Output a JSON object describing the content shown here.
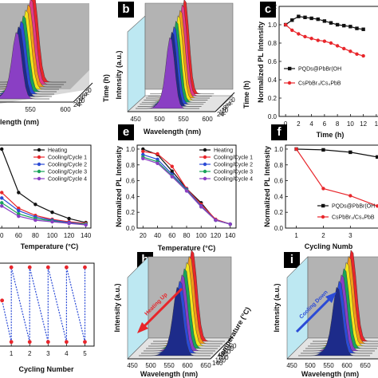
{
  "panels": {
    "a": {
      "letter": "",
      "xlabel": "length (nm)",
      "zlabel": "Time (h)",
      "xticks": [
        "550",
        "600"
      ],
      "zticks": [
        "0",
        "2",
        "4",
        "6",
        "8",
        "10",
        "12",
        "24"
      ]
    },
    "b": {
      "letter": "b",
      "xlabel": "Wavelength (nm)",
      "ylabel": "Intensity (a.u.)",
      "zlabel": "Time (h)",
      "xticks": [
        "450",
        "500",
        "550",
        "600"
      ],
      "zticks": [
        "0",
        "2",
        "4",
        "6",
        "8",
        "10",
        "12",
        "24"
      ]
    },
    "c": {
      "letter": "c",
      "xlabel": "Time (h)",
      "ylabel": "Normalized PL Intensity",
      "xticks": [
        "0",
        "2",
        "4",
        "6",
        "8",
        "10",
        "12",
        "1"
      ],
      "yticks": [
        "0.0",
        "0.2",
        "0.4",
        "0.6",
        "0.8",
        "1.0",
        "1.2"
      ],
      "legend": [
        "PQDs@PbBr(OH",
        "CsPbBr₃/Cs₄PbB"
      ]
    },
    "d": {
      "letter": "",
      "xlabel": "Temperature (°C)",
      "xticks": [
        "0",
        "60",
        "80",
        "100",
        "120",
        "140"
      ],
      "legend": [
        "Heating",
        "Cooling/Cycle 1",
        "Cooling/Cycle 2",
        "Cooling/Cycle 3",
        "Cooling/Cycle 4"
      ]
    },
    "e": {
      "letter": "e",
      "xlabel": "Temperature (°C)",
      "ylabel": "Normalized PL Intensity",
      "xticks": [
        "20",
        "40",
        "60",
        "80",
        "100",
        "120",
        "140"
      ],
      "yticks": [
        "0.0",
        "0.2",
        "0.4",
        "0.6",
        "0.8",
        "1.0"
      ],
      "legend": [
        "Heating",
        "Cooling/Cycle 1",
        "Cooling/Cycle 2",
        "Cooling/Cycle 3",
        "Cooling/Cycle 4"
      ]
    },
    "f": {
      "letter": "f",
      "xlabel": "Cycling Numb",
      "ylabel": "Normalized PL Intensity",
      "xticks": [
        "1",
        "2",
        "3"
      ],
      "yticks": [
        "0.0",
        "0.2",
        "0.4",
        "0.6",
        "0.8",
        "1.0"
      ],
      "legend": [
        "PQDs@PbBr(OH",
        "CsPbBr₃/Cs₄PbB"
      ]
    },
    "g": {
      "letter": "",
      "xlabel": "Cycling Number",
      "xticks": [
        "1",
        "2",
        "3",
        "4",
        "5"
      ]
    },
    "h": {
      "letter": "h",
      "xlabel": "Wavelength (nm)",
      "ylabel": "Intensity (a.u.)",
      "zlabel": "Temperature (°C)",
      "xticks": [
        "450",
        "500",
        "550",
        "600",
        "650"
      ],
      "zticks": [
        "20",
        "40",
        "60",
        "80",
        "100",
        "120",
        "140"
      ],
      "arrow": "Heating Up"
    },
    "i": {
      "letter": "i",
      "xlabel": "Wavelength (nm)",
      "ylabel": "Intensity (a.u.)",
      "xticks": [
        "450",
        "500",
        "550",
        "600",
        "650"
      ],
      "arrow": "Cooling Down"
    }
  },
  "colors": {
    "black": "#111111",
    "red": "#e8262b",
    "blue": "#2b4bd6",
    "green": "#19a35a",
    "purple": "#8a3fc4",
    "yellow": "#f2e51b",
    "orange": "#f39a1a",
    "navy": "#1d2b8a",
    "wall_gray": "#b3b3b3",
    "wall_cyan": "#bde8f2"
  },
  "chart_data": [
    {
      "panel": "c",
      "type": "line",
      "xlabel": "Time (h)",
      "ylabel": "Normalized PL Intensity",
      "ylim": [
        0,
        1.2
      ],
      "series": [
        {
          "name": "PQDs@PbBr(OH",
          "color": "#111111",
          "x": [
            0,
            1,
            2,
            3,
            4,
            5,
            6,
            7,
            8,
            9,
            10,
            11,
            12
          ],
          "values": [
            1.0,
            1.05,
            1.09,
            1.08,
            1.07,
            1.06,
            1.04,
            1.02,
            1.0,
            0.99,
            0.98,
            0.96,
            0.95
          ]
        },
        {
          "name": "CsPbBr₃/Cs₄PbB",
          "color": "#e8262b",
          "x": [
            0,
            1,
            2,
            3,
            4,
            5,
            6,
            7,
            8,
            9,
            10,
            11,
            12
          ],
          "values": [
            1.0,
            0.94,
            0.9,
            0.87,
            0.85,
            0.83,
            0.82,
            0.8,
            0.77,
            0.74,
            0.71,
            0.68,
            0.66
          ]
        }
      ]
    },
    {
      "panel": "d",
      "type": "line",
      "xlabel": "Temperature (°C)",
      "x": [
        40,
        60,
        80,
        100,
        120,
        140
      ],
      "series": [
        {
          "name": "Heating",
          "color": "#111111",
          "values": [
            1.0,
            0.45,
            0.3,
            0.2,
            0.12,
            0.07
          ]
        },
        {
          "name": "Cooling/Cycle 1",
          "color": "#e8262b",
          "values": [
            0.45,
            0.25,
            0.16,
            0.11,
            0.08,
            0.06
          ]
        },
        {
          "name": "Cooling/Cycle 2",
          "color": "#2b4bd6",
          "values": [
            0.38,
            0.22,
            0.14,
            0.1,
            0.07,
            0.05
          ]
        },
        {
          "name": "Cooling/Cycle 3",
          "color": "#19a35a",
          "values": [
            0.32,
            0.18,
            0.12,
            0.09,
            0.06,
            0.05
          ]
        },
        {
          "name": "Cooling/Cycle 4",
          "color": "#8a3fc4",
          "values": [
            0.28,
            0.15,
            0.1,
            0.08,
            0.06,
            0.04
          ]
        }
      ]
    },
    {
      "panel": "e",
      "type": "line",
      "xlabel": "Temperature (°C)",
      "ylabel": "Normalized PL Intensity",
      "ylim": [
        0,
        1.0
      ],
      "x": [
        20,
        40,
        60,
        80,
        100,
        120,
        140
      ],
      "series": [
        {
          "name": "Heating",
          "color": "#111111",
          "values": [
            1.0,
            0.93,
            0.72,
            0.5,
            0.32,
            0.1,
            0.05
          ]
        },
        {
          "name": "Cooling/Cycle 1",
          "color": "#e8262b",
          "values": [
            0.97,
            0.94,
            0.78,
            0.5,
            0.3,
            0.11,
            0.05
          ]
        },
        {
          "name": "Cooling/Cycle 2",
          "color": "#2b4bd6",
          "values": [
            0.93,
            0.87,
            0.68,
            0.49,
            0.28,
            0.1,
            0.05
          ]
        },
        {
          "name": "Cooling/Cycle 3",
          "color": "#19a35a",
          "values": [
            0.9,
            0.84,
            0.66,
            0.48,
            0.27,
            0.1,
            0.05
          ]
        },
        {
          "name": "Cooling/Cycle 4",
          "color": "#8a3fc4",
          "values": [
            0.88,
            0.82,
            0.65,
            0.47,
            0.27,
            0.1,
            0.05
          ]
        }
      ]
    },
    {
      "panel": "f",
      "type": "line",
      "xlabel": "Cycling Numb",
      "ylabel": "Normalized PL Intensity",
      "ylim": [
        0,
        1.0
      ],
      "x": [
        1,
        2,
        3,
        4
      ],
      "series": [
        {
          "name": "PQDs@PbBr(OH",
          "color": "#111111",
          "values": [
            1.0,
            0.99,
            0.96,
            0.9
          ]
        },
        {
          "name": "CsPbBr₃/Cs₄PbB",
          "color": "#e8262b",
          "values": [
            1.0,
            0.5,
            0.41,
            0.28
          ]
        }
      ]
    },
    {
      "panel": "g",
      "type": "line",
      "xlabel": "Cycling Number",
      "series": [
        {
          "name": "",
          "color": "#2b4bd6",
          "x": [
            0.5,
            1,
            1,
            2,
            2,
            3,
            3,
            4,
            4,
            5,
            5
          ],
          "values": [
            0.55,
            0.05,
            0.95,
            0.05,
            0.95,
            0.05,
            0.95,
            0.05,
            0.95,
            0.05,
            0.95
          ]
        }
      ]
    }
  ]
}
